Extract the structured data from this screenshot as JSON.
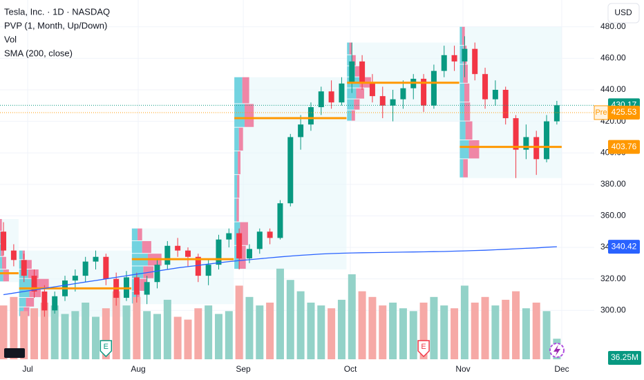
{
  "chart_data": {
    "type": "candlestick",
    "title": "Tesla, Inc. · 1D · NASDAQ",
    "indicators": [
      "PVP (1, Month, Up/Down)",
      "Vol",
      "SMA (200, close)"
    ],
    "currency": "USD",
    "xlim": [
      -0.34,
      57.65
    ],
    "xticks": [
      {
        "value": 2.36,
        "label": "Jul"
      },
      {
        "value": 13.15,
        "label": "Aug"
      },
      {
        "value": 23.4,
        "label": "Sep"
      },
      {
        "value": 33.85,
        "label": "Oct"
      },
      {
        "value": 44.84,
        "label": "Nov"
      },
      {
        "value": 54.48,
        "label": "Dec"
      }
    ],
    "ylim": [
      269,
      497
    ],
    "yticks": [
      {
        "value": 300,
        "label": "300.00"
      },
      {
        "value": 320,
        "label": "320.00"
      },
      {
        "value": 340,
        "label": "340.00"
      },
      {
        "value": 360,
        "label": "360.00"
      },
      {
        "value": 380,
        "label": "380.00"
      },
      {
        "value": 400,
        "label": "400.00"
      },
      {
        "value": 420,
        "label": "420.00"
      },
      {
        "value": 440,
        "label": "440.00"
      },
      {
        "value": 460,
        "label": "460.00"
      },
      {
        "value": 480,
        "label": "480.00"
      }
    ],
    "grid": true,
    "colors": {
      "up": "#089981",
      "down": "#f23645",
      "volume_up": "#93d2c8",
      "volume_down": "#f6a9a6",
      "sma": "#2962ff",
      "poc": "#ff9800",
      "profile_up": "#5ccbdb",
      "profile_down": "#ef7197",
      "profile_area": "#e6f6fa",
      "premarket": "#ff9800"
    },
    "ohlc": [
      [
        350,
        356,
        335,
        338
      ],
      [
        338,
        342,
        328,
        332
      ],
      [
        332,
        336,
        318,
        322
      ],
      [
        322,
        326,
        308,
        312
      ],
      [
        312,
        316,
        296,
        300
      ],
      [
        300,
        312,
        298,
        309
      ],
      [
        309,
        322,
        306,
        319
      ],
      [
        319,
        326,
        312,
        322
      ],
      [
        322,
        334,
        318,
        331
      ],
      [
        331,
        338,
        326,
        334
      ],
      [
        334,
        336,
        316,
        320
      ],
      [
        320,
        324,
        303,
        308
      ],
      [
        308,
        325,
        306,
        321
      ],
      [
        321,
        324,
        305,
        310
      ],
      [
        310,
        322,
        304,
        318
      ],
      [
        318,
        332,
        314,
        329
      ],
      [
        329,
        344,
        326,
        341
      ],
      [
        341,
        346,
        334,
        338
      ],
      [
        338,
        340,
        328,
        334
      ],
      [
        334,
        336,
        318,
        322
      ],
      [
        322,
        332,
        316,
        329
      ],
      [
        329,
        348,
        326,
        345
      ],
      [
        345,
        352,
        340,
        349
      ],
      [
        349,
        352,
        326,
        333
      ],
      [
        333,
        342,
        330,
        339
      ],
      [
        339,
        352,
        336,
        350
      ],
      [
        350,
        352,
        342,
        346
      ],
      [
        346,
        370,
        345,
        368
      ],
      [
        368,
        412,
        366,
        410
      ],
      [
        410,
        424,
        402,
        418
      ],
      [
        418,
        432,
        414,
        429
      ],
      [
        429,
        442,
        424,
        439
      ],
      [
        439,
        446,
        428,
        432
      ],
      [
        432,
        448,
        430,
        444
      ],
      [
        444,
        470,
        438,
        458
      ],
      [
        458,
        462,
        440,
        444
      ],
      [
        444,
        450,
        432,
        436
      ],
      [
        436,
        442,
        422,
        430
      ],
      [
        430,
        440,
        420,
        434
      ],
      [
        434,
        446,
        428,
        441
      ],
      [
        441,
        450,
        434,
        447
      ],
      [
        447,
        450,
        426,
        430
      ],
      [
        430,
        456,
        428,
        452
      ],
      [
        452,
        468,
        448,
        462
      ],
      [
        462,
        468,
        452,
        458
      ],
      [
        458,
        474,
        448,
        466
      ],
      [
        466,
        470,
        446,
        450
      ],
      [
        450,
        454,
        428,
        434
      ],
      [
        434,
        446,
        430,
        440
      ],
      [
        440,
        442,
        418,
        422
      ],
      [
        422,
        424,
        384,
        402
      ],
      [
        402,
        418,
        396,
        410
      ],
      [
        410,
        414,
        386,
        396
      ],
      [
        396,
        424,
        394,
        420
      ],
      [
        420,
        433,
        418,
        430.17
      ]
    ],
    "volume": {
      "values": [
        95,
        110,
        85,
        90,
        100,
        95,
        80,
        85,
        100,
        75,
        90,
        120,
        95,
        110,
        85,
        80,
        105,
        75,
        70,
        90,
        95,
        80,
        85,
        130,
        110,
        95,
        100,
        160,
        140,
        120,
        100,
        95,
        90,
        105,
        150,
        120,
        110,
        95,
        100,
        90,
        85,
        100,
        110,
        95,
        90,
        130,
        100,
        110,
        95,
        105,
        120,
        90,
        100,
        85,
        36.25
      ],
      "value_labels": [
        null,
        null,
        null,
        null,
        null,
        null,
        null,
        null,
        null,
        null,
        null,
        null,
        null,
        null,
        null,
        null,
        null,
        null,
        null,
        null,
        null,
        null,
        null,
        null,
        null,
        null,
        null,
        null,
        null,
        null,
        null,
        null,
        null,
        null,
        null,
        null,
        null,
        null,
        null,
        null,
        null,
        null,
        null,
        null,
        null,
        null,
        null,
        null,
        null,
        null,
        null,
        null,
        null,
        null,
        "36.25M"
      ]
    },
    "sma": [
      310,
      311,
      312,
      313,
      314,
      315,
      316,
      317,
      318,
      319,
      320,
      321,
      322,
      323,
      324,
      325,
      326,
      327,
      327.8,
      328.6,
      329.4,
      330.2,
      331,
      331.6,
      332.2,
      332.8,
      333.4,
      334,
      334.5,
      335,
      335.4,
      335.8,
      336.1,
      336.3,
      336.5,
      336.6,
      336.7,
      336.8,
      336.9,
      337,
      337.1,
      337.2,
      337.3,
      337.4,
      337.6,
      337.8,
      338,
      338.2,
      338.5,
      338.8,
      339.1,
      339.4,
      339.7,
      340.1,
      340.42
    ],
    "profiles": [
      {
        "first": 0,
        "last": 1,
        "poc": 323.6,
        "bins": [
          318,
          326,
          334,
          342,
          350,
          358
        ],
        "up": [
          20,
          15,
          10,
          8,
          6
        ],
        "down": [
          25,
          18,
          12,
          10,
          8
        ]
      },
      {
        "first": 2,
        "last": 12,
        "poc": 314,
        "bins": [
          296,
          302,
          308,
          314,
          320,
          326,
          332,
          338
        ],
        "up": [
          20,
          30,
          45,
          60,
          40,
          30,
          15
        ],
        "down": [
          25,
          35,
          50,
          70,
          45,
          25,
          10
        ]
      },
      {
        "first": 13,
        "last": 22,
        "poc": 332.5,
        "bins": [
          304,
          312,
          320,
          328,
          336,
          344,
          352
        ],
        "up": [
          20,
          35,
          50,
          70,
          45,
          25
        ],
        "down": [
          15,
          30,
          45,
          60,
          40,
          20
        ]
      },
      {
        "first": 23,
        "last": 33,
        "poc": 422,
        "bins": [
          326,
          341,
          356,
          371,
          386,
          401,
          416,
          431,
          448
        ],
        "up": [
          20,
          25,
          10,
          12,
          15,
          20,
          45,
          35
        ],
        "down": [
          30,
          35,
          10,
          10,
          12,
          18,
          40,
          30
        ]
      },
      {
        "first": 34,
        "last": 44,
        "poc": 444.5,
        "bins": [
          420,
          427,
          434,
          441,
          448,
          455,
          462,
          470
        ],
        "up": [
          20,
          30,
          40,
          55,
          35,
          20,
          10
        ],
        "down": [
          15,
          25,
          35,
          50,
          30,
          18,
          12
        ]
      },
      {
        "first": 45,
        "last": 54,
        "poc": 403.76,
        "bins": [
          384,
          396,
          408,
          420,
          432,
          444,
          456,
          468,
          480
        ],
        "up": [
          15,
          40,
          25,
          20,
          20,
          15,
          15,
          10
        ],
        "down": [
          20,
          45,
          30,
          25,
          22,
          20,
          15,
          12
        ]
      }
    ],
    "premarket": {
      "label": "Pre",
      "value": 425.53
    },
    "events": [
      {
        "index": 10,
        "label": "E"
      },
      {
        "index": 41,
        "label": "E"
      }
    ]
  }
}
